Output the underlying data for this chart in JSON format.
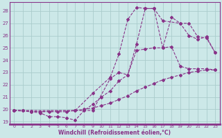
{
  "bg_color": "#cce8e8",
  "grid_color": "#aacccc",
  "line_color": "#883388",
  "xlabel": "Windchill (Refroidissement éolien,°C)",
  "xlim_min": -0.5,
  "xlim_max": 23.5,
  "ylim_min": 18.8,
  "ylim_max": 28.7,
  "yticks": [
    19,
    20,
    21,
    22,
    23,
    24,
    25,
    26,
    27,
    28
  ],
  "xticks": [
    0,
    1,
    2,
    3,
    4,
    5,
    6,
    7,
    8,
    9,
    10,
    11,
    12,
    13,
    14,
    15,
    16,
    17,
    18,
    19,
    20,
    21,
    22,
    23
  ],
  "curve1_x": [
    0,
    1,
    2,
    3,
    4,
    5,
    6,
    7,
    8,
    9,
    10,
    11,
    12,
    13,
    14,
    15,
    16,
    17,
    18,
    19,
    20,
    21,
    22,
    23
  ],
  "curve1_y": [
    19.9,
    19.9,
    19.85,
    19.8,
    19.8,
    19.8,
    19.8,
    19.9,
    20.0,
    20.1,
    20.3,
    20.5,
    20.8,
    21.1,
    21.5,
    21.8,
    22.1,
    22.4,
    22.6,
    22.8,
    23.0,
    23.1,
    23.2,
    23.2
  ],
  "curve2_x": [
    0,
    1,
    2,
    3,
    4,
    5,
    6,
    7,
    8,
    9,
    10,
    11,
    12,
    13,
    14,
    15,
    16,
    17,
    18,
    19,
    20,
    21,
    22,
    23
  ],
  "curve2_y": [
    19.9,
    19.9,
    19.8,
    19.7,
    19.4,
    19.4,
    19.3,
    19.1,
    19.9,
    20.4,
    21.0,
    21.5,
    22.3,
    22.8,
    24.8,
    24.9,
    25.0,
    25.0,
    25.1,
    23.5,
    23.3,
    23.3,
    23.3,
    23.2
  ],
  "curve3_x": [
    0,
    2,
    7,
    9,
    11,
    12,
    13,
    14,
    15,
    16,
    17,
    18,
    19,
    20,
    21,
    22,
    23
  ],
  "curve3_y": [
    19.9,
    19.8,
    19.9,
    21.3,
    22.6,
    24.5,
    27.3,
    28.3,
    28.2,
    28.2,
    25.0,
    27.5,
    27.0,
    27.0,
    25.9,
    25.8,
    24.6
  ],
  "curve4_x": [
    0,
    9,
    11,
    12,
    13,
    14,
    15,
    16,
    17,
    19,
    20,
    21,
    22,
    23
  ],
  "curve4_y": [
    19.9,
    19.9,
    22.5,
    23.0,
    22.8,
    25.3,
    28.2,
    28.2,
    27.2,
    27.0,
    26.0,
    25.7,
    25.9,
    24.6
  ]
}
